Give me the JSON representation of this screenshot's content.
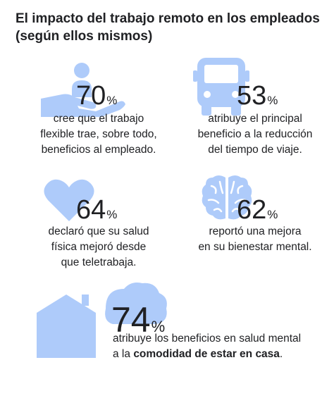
{
  "title": {
    "line1": "El impacto del trabajo remoto en los empleados",
    "line2": "(según ellos mismos)"
  },
  "accent_color": "#aecbfa",
  "stats": [
    {
      "icon": "hand-person-icon",
      "value": "70",
      "unit": "%",
      "lines": [
        "cree que el trabajo",
        "flexible trae, sobre todo,",
        "beneficios al empleado."
      ]
    },
    {
      "icon": "bus-icon",
      "value": "53",
      "unit": "%",
      "lines": [
        "atribuye el principal",
        "beneficio a la reducción",
        "del tiempo de viaje."
      ]
    },
    {
      "icon": "heart-icon",
      "value": "64",
      "unit": "%",
      "lines": [
        "declaró que su salud",
        "física mejoró desde",
        "que teletrabaja."
      ]
    },
    {
      "icon": "brain-icon",
      "value": "62",
      "unit": "%",
      "lines": [
        "reportó una mejora",
        "en su bienestar mental."
      ]
    }
  ],
  "feature": {
    "icon": "house-cloud-icon",
    "value": "74",
    "unit": "%",
    "line1": "atribuye los beneficios en salud mental",
    "line2_prefix": "a la ",
    "line2_bold": "comodidad de estar en casa",
    "line2_suffix": "."
  }
}
